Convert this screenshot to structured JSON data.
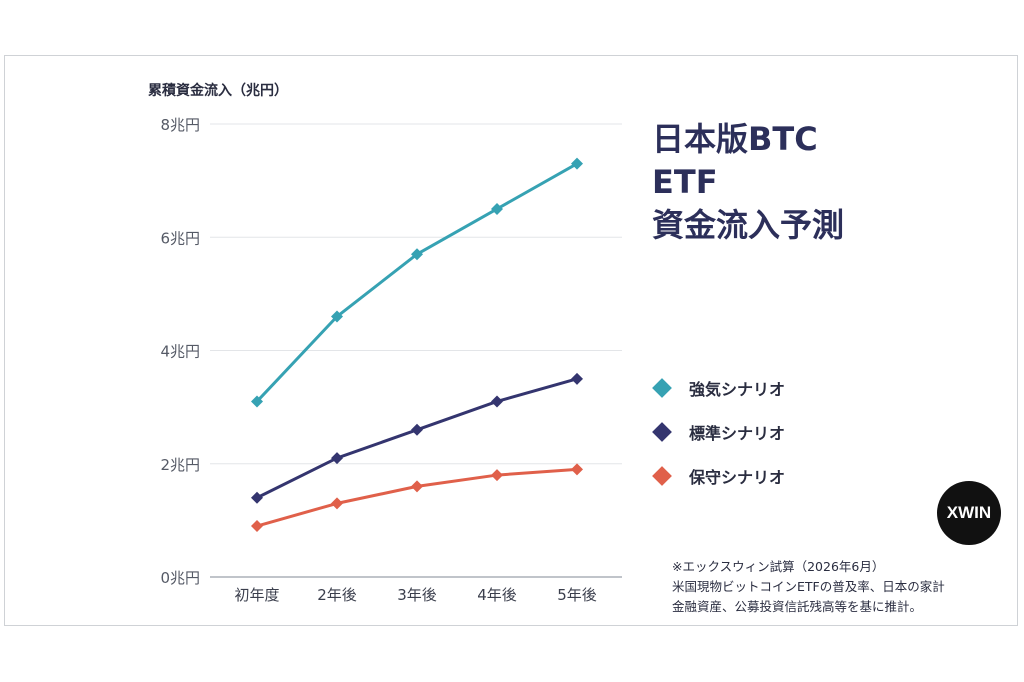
{
  "chart_data": {
    "type": "line",
    "title_lines": [
      "日本版BTC",
      "ETF",
      "資金流入予測"
    ],
    "ylabel": "累積資金流入（兆円）",
    "categories": [
      "初年度",
      "2年後",
      "3年後",
      "4年後",
      "5年後"
    ],
    "yticks": [
      "0兆円",
      "2兆円",
      "4兆円",
      "6兆円",
      "8兆円"
    ],
    "ylim": [
      0,
      8
    ],
    "grid": true,
    "legend_position": "right",
    "series": [
      {
        "name": "強気シナリオ",
        "color": "#36a2b3",
        "values": [
          3.1,
          4.6,
          5.7,
          6.5,
          7.3
        ]
      },
      {
        "name": "標準シナリオ",
        "color": "#34356f",
        "values": [
          1.4,
          2.1,
          2.6,
          3.1,
          3.5
        ]
      },
      {
        "name": "保守シナリオ",
        "color": "#e0604a",
        "values": [
          0.9,
          1.3,
          1.6,
          1.8,
          1.9
        ]
      }
    ]
  },
  "brand": {
    "badge": "XWIN"
  },
  "note_lines": [
    "※エックスウィン試算（2026年6月）",
    "米国現物ビットコインETFの普及率、日本の家計",
    "金融資産、公募投資信託残高等を基に推計。"
  ]
}
